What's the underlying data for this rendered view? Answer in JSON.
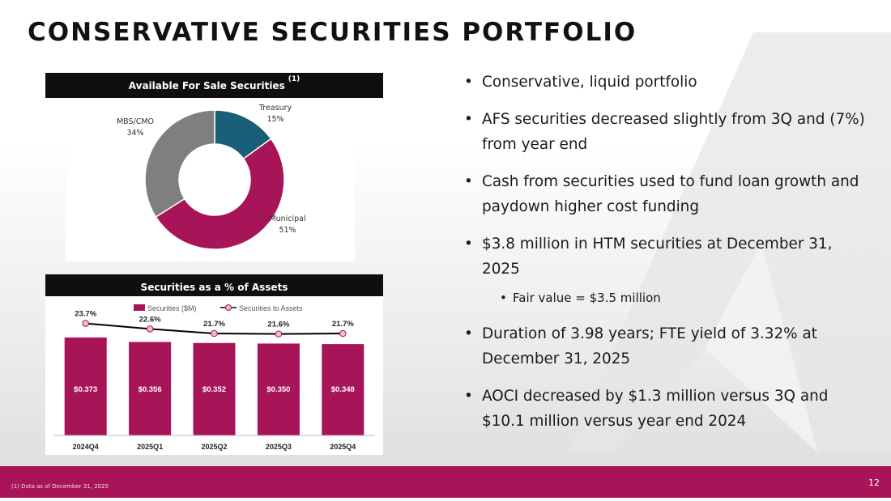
{
  "title": "CONSERVATIVE SECURITIES PORTFOLIO",
  "colors": {
    "brand": "#a81458",
    "navy": "#1a5f7a",
    "grey": "#7f7f7f",
    "header": "#0f0f0f"
  },
  "afs_panel": {
    "title": "Available For Sale Securities",
    "superscript": "(1)"
  },
  "ratio_panel": {
    "title": "Securities as a % of Assets"
  },
  "chart_data": [
    {
      "type": "pie",
      "title": "Available For Sale Securities",
      "slices": [
        {
          "label": "Treasury",
          "value": 15,
          "display": "15%",
          "color": "#1a5f7a"
        },
        {
          "label": "Municipal",
          "value": 51,
          "display": "51%",
          "color": "#a81458"
        },
        {
          "label": "MBS/CMO",
          "value": 34,
          "display": "34%",
          "color": "#7f7f7f"
        }
      ]
    },
    {
      "type": "bar",
      "title": "Securities as a % of Assets",
      "categories": [
        "2024Q4",
        "2025Q1",
        "2025Q2",
        "2025Q3",
        "2025Q4"
      ],
      "series": [
        {
          "name": "Securities ($M)",
          "type": "bar",
          "color": "#a81458",
          "values": [
            0.373,
            0.356,
            0.352,
            0.35,
            0.348
          ],
          "labels": [
            "$0.373",
            "$0.356",
            "$0.352",
            "$0.350",
            "$0.348"
          ]
        },
        {
          "name": "Securities to Assets",
          "type": "line",
          "color": "#000000",
          "values": [
            23.7,
            22.6,
            21.7,
            21.6,
            21.7
          ],
          "labels": [
            "23.7%",
            "22.6%",
            "21.7%",
            "21.6%",
            "21.7%"
          ]
        }
      ],
      "legend": "top"
    }
  ],
  "bullets": [
    {
      "text": "Conservative, liquid portfolio"
    },
    {
      "text": "AFS securities decreased slightly from 3Q and (7%) from year end"
    },
    {
      "text": "Cash from securities used to fund loan growth and paydown higher cost funding"
    },
    {
      "text": "$3.8 million in HTM securities at December 31, 2025"
    },
    {
      "text": "Fair value = $3.5 million",
      "sub": true
    },
    {
      "text": "Duration of 3.98 years; FTE yield of 3.32% at December 31, 2025"
    },
    {
      "text": "AOCI decreased by $1.3 million versus 3Q and $10.1 million versus year end 2024"
    }
  ],
  "footnote": "(1) Data as of December 31, 2025",
  "page_number": "12"
}
